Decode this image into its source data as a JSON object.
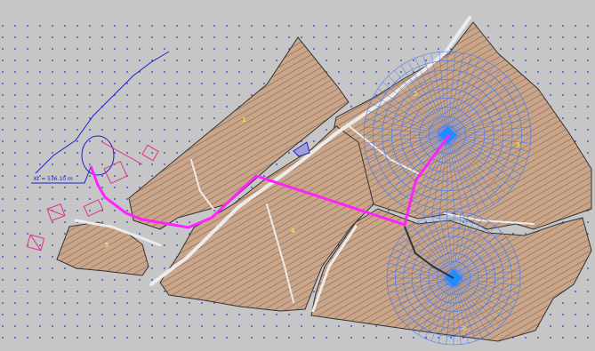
{
  "map": {
    "elevation_label": "Kt = 536.10 m",
    "parcel_numbers": [
      "1",
      "2",
      "3",
      "4",
      "5",
      "6"
    ],
    "colors": {
      "background": "#c6c6c6",
      "field_fill": "#c9a58a",
      "field_hatch": "#7a5a44",
      "road": "#e9e9e9",
      "pipe_main": "#ff22ff",
      "pipe_secondary": "#333333",
      "sprinkler": "#3a7bff",
      "grid_dots": "#2a32c8",
      "annotation": "#1018a8",
      "parcel_number": "#ffff44",
      "building_outline": "#e0308a"
    },
    "icons": [
      "sprinkler-icon",
      "well-icon",
      "building-icon",
      "tank-icon"
    ]
  }
}
